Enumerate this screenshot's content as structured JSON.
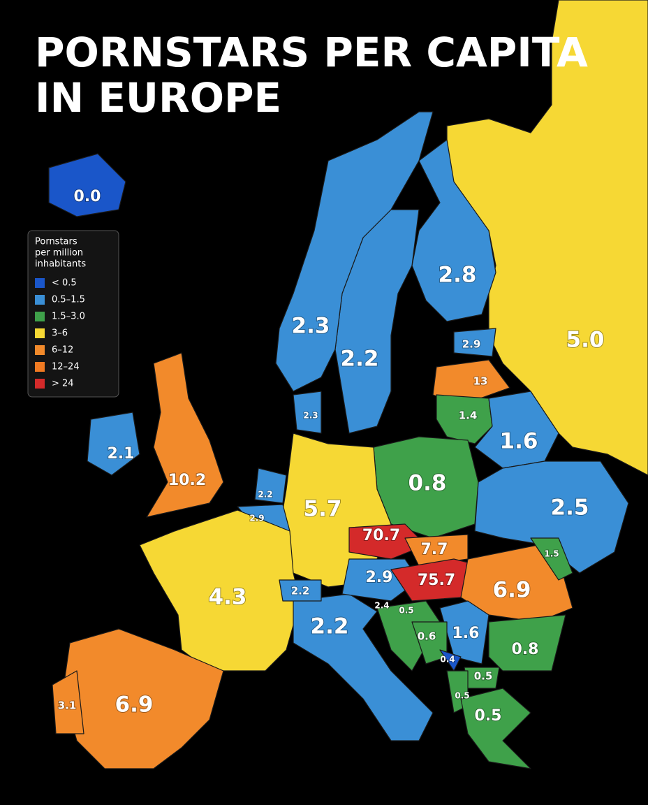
{
  "header": {
    "title_lines": [
      "PORNSTARS PER CAPITA",
      "IN EUROPE"
    ]
  },
  "legend": {
    "title_lines": [
      "Pornstars",
      "per million",
      "inhabitants"
    ],
    "items": [
      {
        "label": "< 0.5",
        "color": "#1a56c9"
      },
      {
        "label": "0.5–1.5",
        "color": "#3a8fd6"
      },
      {
        "label": "1.5–3.0",
        "color": "#3fa14a"
      },
      {
        "label": "3–6",
        "color": "#f6d834"
      },
      {
        "label": "6–12",
        "color": "#f28a2b"
      },
      {
        "label": "12–24",
        "color": "#f07a22"
      },
      {
        "label": "> 24",
        "color": "#d42a2a"
      }
    ]
  },
  "regions": [
    {
      "label": "0.0"
    },
    {
      "label": "2.3"
    },
    {
      "label": "2.2"
    },
    {
      "label": "2.8"
    },
    {
      "label": "5.0"
    },
    {
      "label": "2.9"
    },
    {
      "label": "13"
    },
    {
      "label": "1.4"
    },
    {
      "label": "1.6"
    },
    {
      "label": "2.3"
    },
    {
      "label": "2.1"
    },
    {
      "label": "10.2"
    },
    {
      "label": "2.2"
    },
    {
      "label": "2.9"
    },
    {
      "label": "5.7"
    },
    {
      "label": "0.8"
    },
    {
      "label": "2.5"
    },
    {
      "label": "70.7"
    },
    {
      "label": "7.7"
    },
    {
      "label": "75.7"
    },
    {
      "label": "1.5"
    },
    {
      "label": "6.9"
    },
    {
      "label": "4.3"
    },
    {
      "label": "2.2"
    },
    {
      "label": "2.9"
    },
    {
      "label": "2.4"
    },
    {
      "label": "0.5"
    },
    {
      "label": "2.2"
    },
    {
      "label": "0.6"
    },
    {
      "label": "1.6"
    },
    {
      "label": "0.8"
    },
    {
      "label": "0.4"
    },
    {
      "label": "0.5"
    },
    {
      "label": "0.5"
    },
    {
      "label": "0.5"
    },
    {
      "label": "6.9"
    },
    {
      "label": "3.1"
    }
  ]
}
